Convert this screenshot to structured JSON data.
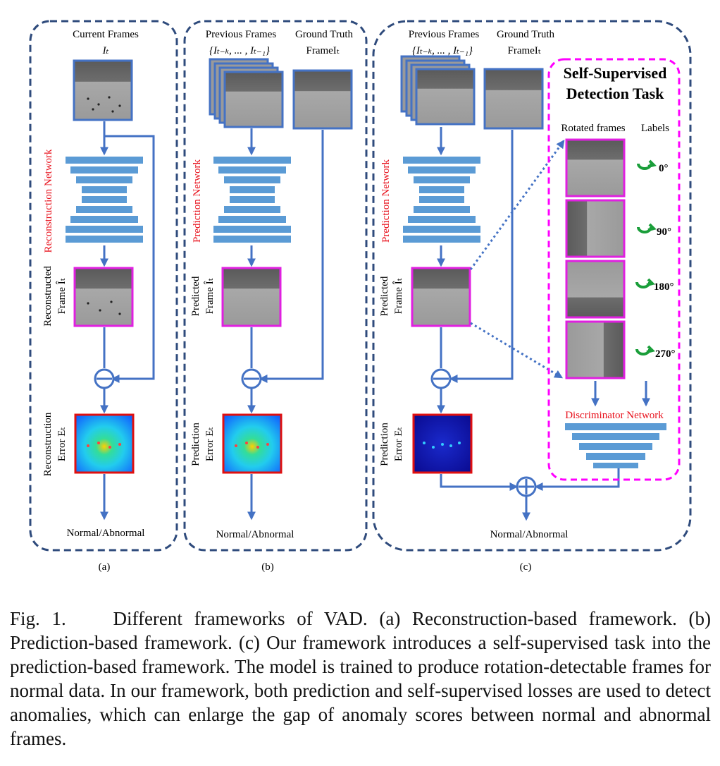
{
  "panel_a": {
    "input_label": "Current Frames",
    "input_var": "Iₜ",
    "network_label": "Reconstruction Network",
    "output_frame_label_1": "Reconstructed",
    "output_frame_label_2": "Frame Îₜ",
    "error_label_1": "Reconstruction",
    "error_label_2": "Error Eₜ",
    "result": "Normal/Abnormal",
    "tag": "(a)"
  },
  "panel_b": {
    "prev_label": "Previous Frames",
    "gt_label": "Ground Truth",
    "prev_var": "{Iₜ₋ₖ, ... , Iₜ₋₁}",
    "gt_var": "FrameIₜ",
    "network_label": "Prediction Network",
    "output_frame_label_1": "Predicted",
    "output_frame_label_2": "Frame Îₜ",
    "error_label_1": "Prediction",
    "error_label_2": "Error Eₜ",
    "result": "Normal/Abnormal",
    "tag": "(b)"
  },
  "panel_c": {
    "prev_label": "Previous Frames",
    "gt_label": "Ground Truth",
    "prev_var": "{Iₜ₋ₖ, ... , Iₜ₋₁}",
    "gt_var": "FrameIₜ",
    "network_label": "Prediction Network",
    "output_frame_label_1": "Predicted",
    "output_frame_label_2": "Frame Îₜ",
    "error_label_1": "Prediction",
    "error_label_2": "Error Eₜ",
    "ssl_title_1": "Self-Supervised",
    "ssl_title_2": "Detection Task",
    "rotated_header": "Rotated frames",
    "labels_header": "Labels",
    "rotations": [
      "0°",
      "90°",
      "180°",
      "270°"
    ],
    "discriminator_label": "Discriminator Network",
    "result": "Normal/Abnormal",
    "tag": "(c)"
  },
  "caption": {
    "prefix": "Fig. 1.",
    "text": "Different frameworks of VAD. (a) Reconstruction-based framework. (b) Prediction-based framework. (c) Our framework introduces a self-supervised task into the prediction-based framework. The model is trained to produce rotation-detectable frames for normal data. In our framework, both prediction and self-supervised losses are used to detect anomalies, which can enlarge the gap of anomaly scores between normal and abnormal frames."
  },
  "colors": {
    "panel_border": "#2f4b7c",
    "network": "#5b9bd5",
    "arrow": "#4472c4",
    "predicted_frame_border": "#e020e0",
    "error_border": "#e01010",
    "ssl_border": "#ff00ff",
    "rotation_icon": "#1a9e3a",
    "network_label": "#e8101b"
  }
}
